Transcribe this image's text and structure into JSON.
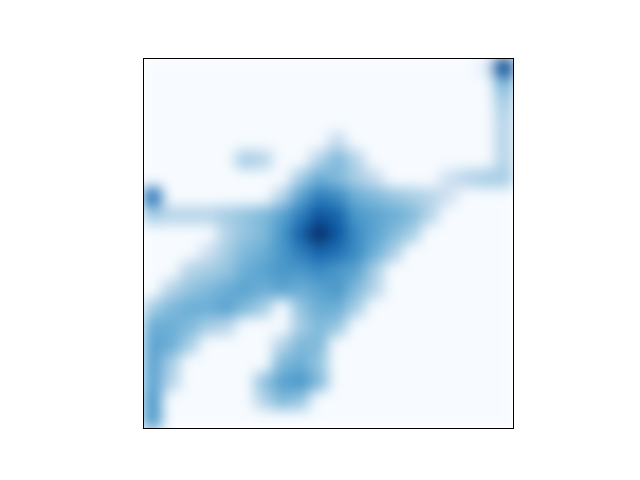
{
  "chart_data": {
    "type": "heatmap",
    "color": "Blues",
    "tick_labels": false,
    "zlim": [
      0,
      1
    ],
    "cells": [
      [
        0,
        0,
        0,
        0,
        0,
        0,
        0,
        0,
        0,
        0,
        0,
        0,
        0,
        0,
        0,
        0,
        0,
        0,
        0.1,
        0.9
      ],
      [
        0,
        0,
        0,
        0,
        0,
        0,
        0,
        0,
        0,
        0,
        0,
        0,
        0,
        0,
        0,
        0,
        0,
        0,
        0,
        0.45
      ],
      [
        0,
        0,
        0,
        0,
        0,
        0,
        0,
        0,
        0,
        0,
        0,
        0,
        0,
        0,
        0,
        0,
        0,
        0,
        0,
        0.35
      ],
      [
        0,
        0,
        0,
        0,
        0,
        0,
        0,
        0,
        0,
        0,
        0,
        0,
        0,
        0,
        0,
        0,
        0,
        0,
        0,
        0.3
      ],
      [
        0,
        0,
        0,
        0,
        0,
        0,
        0,
        0,
        0,
        0,
        0.25,
        0,
        0,
        0,
        0,
        0,
        0,
        0,
        0,
        0.3
      ],
      [
        0,
        0,
        0,
        0,
        0,
        0.35,
        0.3,
        0,
        0,
        0.3,
        0.45,
        0.3,
        0,
        0,
        0,
        0,
        0,
        0,
        0,
        0.3
      ],
      [
        0,
        0,
        0,
        0,
        0,
        0,
        0,
        0,
        0.35,
        0.5,
        0.45,
        0.35,
        0.25,
        0,
        0,
        0,
        0.2,
        0.3,
        0.35,
        0.35
      ],
      [
        0.75,
        0,
        0,
        0,
        0,
        0,
        0,
        0.3,
        0.55,
        0.7,
        0.65,
        0.5,
        0.45,
        0.4,
        0.35,
        0.3,
        0.2,
        0,
        0,
        0
      ],
      [
        0.35,
        0.3,
        0.3,
        0.3,
        0.35,
        0.4,
        0.45,
        0.55,
        0.7,
        0.85,
        0.8,
        0.6,
        0.55,
        0.5,
        0.45,
        0.3,
        0,
        0,
        0,
        0
      ],
      [
        0,
        0,
        0,
        0,
        0.3,
        0.4,
        0.45,
        0.6,
        0.8,
        1.0,
        0.85,
        0.65,
        0.55,
        0.45,
        0.35,
        0,
        0,
        0,
        0,
        0
      ],
      [
        0,
        0,
        0,
        0.2,
        0.35,
        0.45,
        0.5,
        0.6,
        0.7,
        0.8,
        0.75,
        0.65,
        0.5,
        0.35,
        0,
        0,
        0,
        0,
        0,
        0
      ],
      [
        0,
        0,
        0.3,
        0.35,
        0.4,
        0.5,
        0.55,
        0.6,
        0.6,
        0.65,
        0.6,
        0.55,
        0.35,
        0,
        0,
        0,
        0,
        0,
        0,
        0
      ],
      [
        0,
        0.3,
        0.4,
        0.45,
        0.5,
        0.55,
        0.5,
        0.55,
        0.5,
        0.55,
        0.6,
        0.45,
        0.3,
        0,
        0,
        0,
        0,
        0,
        0,
        0
      ],
      [
        0.35,
        0.45,
        0.5,
        0.5,
        0.55,
        0.45,
        0.35,
        0,
        0.4,
        0.5,
        0.5,
        0.35,
        0,
        0,
        0,
        0,
        0,
        0,
        0,
        0
      ],
      [
        0.5,
        0.5,
        0.45,
        0.35,
        0.3,
        0,
        0,
        0,
        0.35,
        0.45,
        0.4,
        0,
        0,
        0,
        0,
        0,
        0,
        0,
        0,
        0
      ],
      [
        0.55,
        0.5,
        0.35,
        0,
        0,
        0,
        0,
        0.3,
        0.45,
        0.45,
        0,
        0,
        0,
        0,
        0,
        0,
        0,
        0,
        0,
        0
      ],
      [
        0.55,
        0.35,
        0,
        0,
        0,
        0,
        0,
        0.45,
        0.5,
        0.4,
        0,
        0,
        0,
        0,
        0,
        0,
        0,
        0,
        0,
        0
      ],
      [
        0.55,
        0.3,
        0,
        0,
        0,
        0,
        0.4,
        0.55,
        0.6,
        0.45,
        0,
        0,
        0,
        0,
        0,
        0,
        0,
        0,
        0,
        0
      ],
      [
        0.6,
        0,
        0,
        0,
        0,
        0,
        0.3,
        0.45,
        0.4,
        0,
        0,
        0,
        0,
        0,
        0,
        0,
        0,
        0,
        0,
        0
      ],
      [
        0.6,
        0,
        0,
        0,
        0,
        0,
        0,
        0,
        0,
        0,
        0,
        0,
        0,
        0,
        0,
        0,
        0,
        0,
        0,
        0
      ]
    ]
  }
}
